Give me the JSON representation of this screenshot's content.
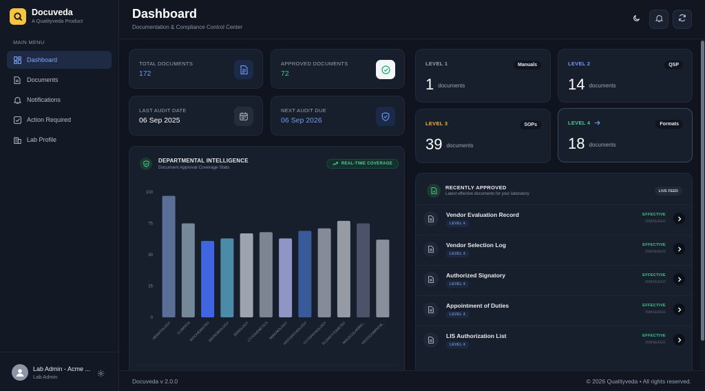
{
  "brand": {
    "name": "Docuveda",
    "sub": "A Qualityveda Product"
  },
  "sidebar": {
    "title": "MAIN MENU",
    "items": [
      {
        "label": "Dashboard",
        "icon": "dashboard-icon",
        "active": true
      },
      {
        "label": "Documents",
        "icon": "document-icon"
      },
      {
        "label": "Notifications",
        "icon": "bell-icon"
      },
      {
        "label": "Action Required",
        "icon": "checkbox-icon"
      },
      {
        "label": "Lab Profile",
        "icon": "building-icon"
      }
    ]
  },
  "user": {
    "name": "Lab Admin - Acme ...",
    "role": "Lab Admin"
  },
  "header": {
    "title": "Dashboard",
    "subtitle": "Documentation & Compliance Control Center"
  },
  "stats": {
    "total": {
      "label": "TOTAL DOCUMENTS",
      "value": "172"
    },
    "approved": {
      "label": "APPROVED DOCUMENTS",
      "value": "72"
    },
    "last_audit": {
      "label": "LAST AUDIT DATE",
      "value": "06 Sep 2025"
    },
    "next_audit": {
      "label": "NEXT AUDIT DUE",
      "value": "06 Sep 2026"
    }
  },
  "levels": [
    {
      "label": "LEVEL 1",
      "tag": "Manuals",
      "count": "1",
      "unit": "documents",
      "color": "#9aa3b5"
    },
    {
      "label": "LEVEL 2",
      "tag": "QSP",
      "count": "14",
      "unit": "documents",
      "color": "#6f9cf0"
    },
    {
      "label": "LEVEL 3",
      "tag": "SOPs",
      "count": "39",
      "unit": "documents",
      "color": "#f0b13a"
    },
    {
      "label": "LEVEL 4",
      "tag": "Formats",
      "count": "18",
      "unit": "documents",
      "color": "#3fcf8e"
    }
  ],
  "dept": {
    "title": "DEPARTMENTAL INTELLIGENCE",
    "subtitle": "Document Approval Coverage Stats",
    "badge": "REAL-TIME COVERAGE"
  },
  "chart_data": {
    "type": "bar",
    "categories": [
      "HEMATOLOGY",
      "CLINPATH",
      "BIOCHEMISTRY",
      "MICROBIOLOGY",
      "SEROLOGY",
      "CYTOGENETICS",
      "IMMUNOLOGY",
      "HISTOPATHOLOGY",
      "CYTOPATHOLOGY",
      "FLOWCYTOMETRY",
      "MOLECULARBIO...",
      "HISTOCOMPATIB..."
    ],
    "values": [
      97,
      75,
      61,
      63,
      67,
      68,
      63,
      69,
      71,
      77,
      75,
      62
    ],
    "colors": [
      "#5a6f96",
      "#76879a",
      "#3f66e0",
      "#4b8aa8",
      "#9ea3b0",
      "#7e8592",
      "#8f96c6",
      "#395a98",
      "#858b98",
      "#979ba6",
      "#4a5368",
      "#8a8f9c"
    ],
    "yticks": [
      0,
      25,
      50,
      75,
      100
    ],
    "ylim": [
      0,
      100
    ],
    "grid": false
  },
  "recent": {
    "title": "RECENTLY APPROVED",
    "subtitle": "Latest effective documents for your laboratory",
    "badge": "LIVE FEED",
    "items": [
      {
        "name": "Vendor Evaluation Record",
        "level": "LEVEL 4",
        "status": "EFFECTIVE",
        "date": "20MSEAGO"
      },
      {
        "name": "Vendor Selection Log",
        "level": "LEVEL 4",
        "status": "EFFECTIVE",
        "date": "20MSEAGO"
      },
      {
        "name": "Authorized Signatory",
        "level": "LEVEL 4",
        "status": "EFFECTIVE",
        "date": "20MSEAGO"
      },
      {
        "name": "Appointment of Duties",
        "level": "LEVEL 4",
        "status": "EFFECTIVE",
        "date": "20MSEAGO"
      },
      {
        "name": "LIS Authorization List",
        "level": "LEVEL 4",
        "status": "EFFECTIVE",
        "date": "20MSEAGO"
      }
    ]
  },
  "footer": {
    "version": "Docuveda v 2.0.0",
    "copyright": "© 2026 Qualityveda • All rights reserved."
  }
}
